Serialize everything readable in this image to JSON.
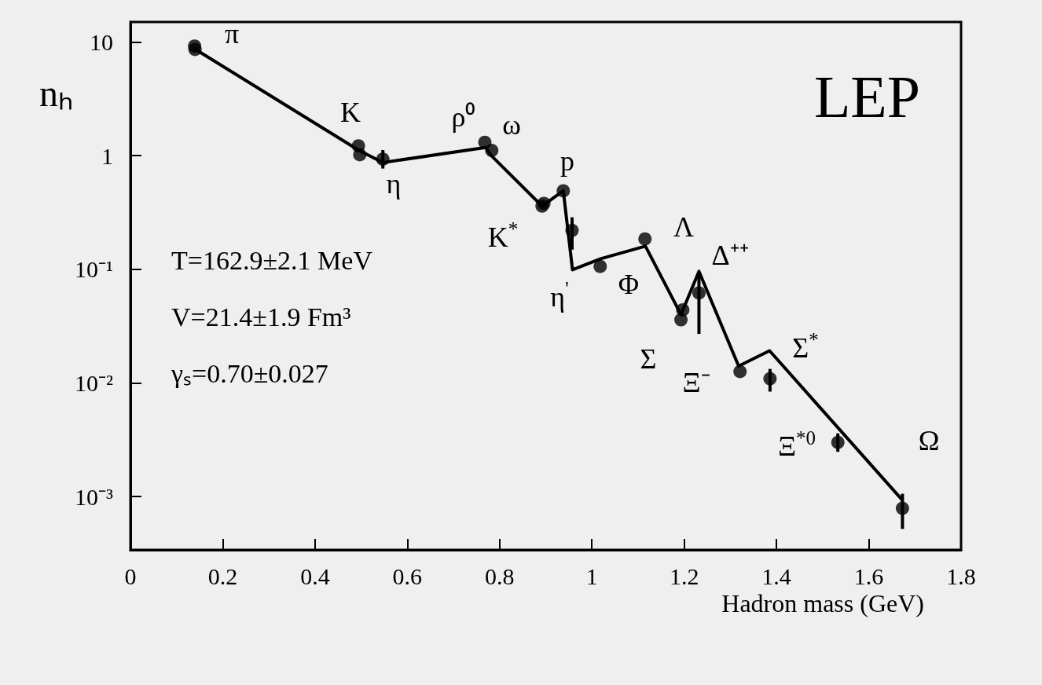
{
  "chart_data": {
    "type": "scatter",
    "xlabel": "Hadron mass (GeV)",
    "ylabel": "nₕ",
    "log": "y",
    "xlim": [
      0,
      1.8
    ],
    "xticks": [
      0,
      0.2,
      0.4,
      0.6,
      0.8,
      1,
      1.2,
      1.4,
      1.6,
      1.8
    ],
    "ylim": [
      0.00034,
      15
    ],
    "yticks": [
      {
        "value": 0.001,
        "label": "10⁻³"
      },
      {
        "value": 0.01,
        "label": "10⁻²"
      },
      {
        "value": 0.1,
        "label": "10⁻¹"
      },
      1,
      10
    ],
    "series": [
      {
        "marker": "circle",
        "color": "#000000",
        "x": [
          0.139,
          0.14,
          0.494,
          0.497,
          0.547,
          0.768,
          0.783,
          0.892,
          0.896,
          0.938,
          0.957,
          1.018,
          1.115,
          1.197,
          1.193,
          1.232,
          1.321,
          1.386,
          1.533,
          1.673
        ],
        "values": [
          9.2,
          8.6,
          1.22,
          1.02,
          0.93,
          1.31,
          1.11,
          0.36,
          0.38,
          0.49,
          0.22,
          0.106,
          0.185,
          0.044,
          0.036,
          0.062,
          0.0126,
          0.0109,
          0.003,
          0.00079
        ],
        "errors": [
          null,
          null,
          null,
          null,
          [
            0.77,
            1.12
          ],
          null,
          null,
          null,
          null,
          null,
          [
            0.149,
            0.287
          ],
          null,
          null,
          null,
          null,
          [
            0.027,
            0.09
          ],
          null,
          [
            0.0084,
            0.0133
          ],
          [
            0.00248,
            0.0036
          ],
          [
            0.00052,
            0.00106
          ]
        ]
      },
      {
        "type": "line",
        "marker": "none",
        "color": "#000000",
        "x": [
          0.139,
          0.494,
          0.547,
          0.77,
          0.782,
          0.892,
          0.938,
          0.958,
          1.019,
          1.116,
          1.193,
          1.232,
          1.318,
          1.385,
          1.672
        ],
        "values": [
          8.7,
          1.12,
          0.87,
          1.18,
          1.0,
          0.36,
          0.49,
          0.099,
          0.124,
          0.16,
          0.04,
          0.096,
          0.0141,
          0.0192,
          0.00094
        ]
      }
    ],
    "annotations": [
      "LEP",
      "T=162.9±2.1 MeV",
      "V=21.4±1.9 Fm³",
      "γₛ=0.70±0.027",
      "π",
      "K",
      "η",
      "ρ⁰",
      "ω",
      "K$^{*}$",
      "p",
      "η$^{'}$",
      "Φ",
      "Λ",
      "Δ⁺⁺",
      "Σ",
      "Ξ⁻",
      "Σ$^{*}$",
      "Ξ$^{*0}$",
      "Ω"
    ]
  }
}
